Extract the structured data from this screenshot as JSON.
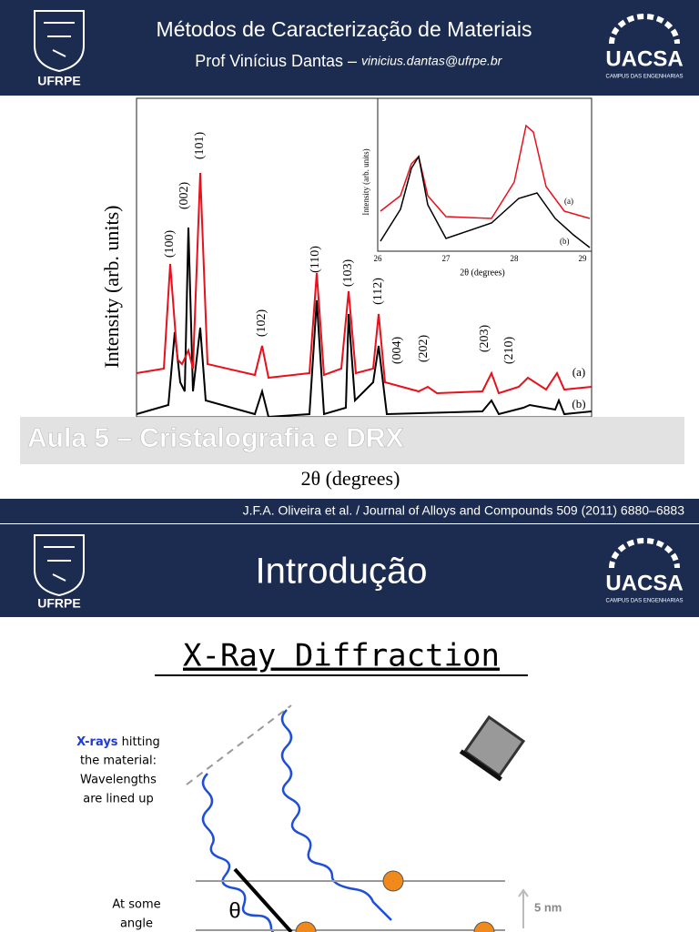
{
  "slides": [
    {
      "header": {
        "title": "Métodos de Caracterização de Materiais",
        "author": "Prof Vinícius Dantas –",
        "email": "vinicius.dantas@ufrpe.br",
        "logo_left": "UFRPE",
        "logo_right": "UACSA",
        "logo_right_sub": "CAMPUS DAS ENGENHARIAS"
      },
      "figure": {
        "y_label": "Intensity (arb. units)",
        "x_label": "2θ (degrees)",
        "peaks": [
          "(100)",
          "(002)",
          "(101)",
          "(102)",
          "(110)",
          "(103)",
          "(112)",
          "(004)",
          "(202)",
          "(203)",
          "(210)"
        ],
        "curve_labels": [
          "(a)",
          "(b)"
        ],
        "inset": {
          "y_label": "Intensity (arb. units)",
          "x_label": "2θ (degrees)",
          "xticks": [
            "26",
            "27",
            "28",
            "29"
          ],
          "curve_labels": [
            "(a)",
            "(b)"
          ]
        }
      },
      "overlay_title": "Aula 5 – Cristalografia e DRX",
      "citation": "J.F.A. Oliveira et al. / Journal of Alloys and Compounds 509 (2011) 6880–6883"
    },
    {
      "header": {
        "title": "Introdução",
        "logo_left": "UFRPE",
        "logo_right": "UACSA",
        "logo_right_sub": "CAMPUS DAS ENGENHARIAS"
      },
      "diagram": {
        "title": "X-Ray Diffraction",
        "highlight": "X-rays",
        "text1": [
          "hitting",
          "the material:",
          "Wavelengths",
          "are lined up"
        ],
        "text2": [
          "At some",
          "angle"
        ],
        "theta": "θ",
        "scale": "5 nm"
      }
    }
  ]
}
